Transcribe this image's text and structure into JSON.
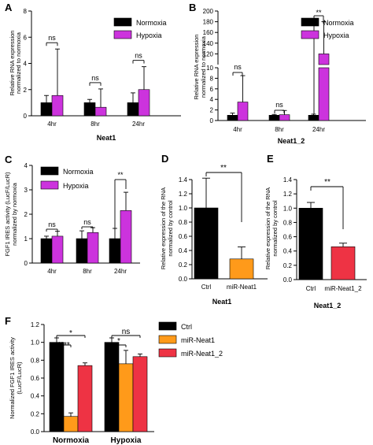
{
  "figure": {
    "panels": [
      "A",
      "B",
      "C",
      "D",
      "E",
      "F"
    ]
  },
  "colors": {
    "normoxia": "#000000",
    "hypoxia": "#cc33dd",
    "ctrl": "#000000",
    "neat1": "#ff9a1a",
    "neat1_2": "#ee3344"
  },
  "chart_data": [
    {
      "id": "A",
      "type": "bar",
      "categories": [
        "4hr",
        "8hr",
        "24hr"
      ],
      "series": [
        {
          "name": "Normoxia",
          "values": [
            1.0,
            1.0,
            1.0
          ],
          "err": [
            0.55,
            0.25,
            0.75
          ]
        },
        {
          "name": "Hypoxia",
          "values": [
            1.55,
            0.65,
            2.0
          ],
          "err": [
            3.55,
            1.4,
            1.75
          ]
        }
      ],
      "ylabel": "Relative RNA expression normalized to normoxia",
      "xlabel": "Neat1",
      "ylim": [
        0,
        8
      ],
      "yticks": [
        0,
        2,
        4,
        6,
        8
      ],
      "sig": [
        "ns",
        "ns",
        "ns"
      ],
      "legend": "top-right"
    },
    {
      "id": "B",
      "type": "bar",
      "broken_axis": true,
      "categories": [
        "4hr",
        "8hr",
        "24hr"
      ],
      "series": [
        {
          "name": "Normoxia",
          "values": [
            1.0,
            1.0,
            1.0
          ],
          "err": [
            0.4,
            0.15,
            0.2
          ]
        },
        {
          "name": "Hypoxia",
          "values": [
            3.5,
            1.1,
            120
          ],
          "err": [
            5.0,
            0.8,
            60
          ]
        }
      ],
      "ylabel": "Relative RNA expression normalized to normoxia",
      "xlabel": "Neat1_2",
      "ylim_lower": [
        0,
        10
      ],
      "ylim_upper": [
        100,
        200
      ],
      "yticks_lower": [
        0,
        2,
        4,
        6,
        8,
        10
      ],
      "yticks_upper": [
        120,
        140,
        160,
        180,
        200
      ],
      "sig": [
        "ns",
        "ns",
        "**"
      ],
      "legend": "top-right"
    },
    {
      "id": "C",
      "type": "bar",
      "categories": [
        "4hr",
        "8hr",
        "24hr"
      ],
      "series": [
        {
          "name": "Normoxia",
          "values": [
            1.0,
            1.0,
            1.0
          ],
          "err": [
            0.1,
            0.32,
            0.42
          ]
        },
        {
          "name": "Hypoxia",
          "values": [
            1.1,
            1.25,
            2.15
          ],
          "err": [
            0.2,
            0.2,
            0.75
          ]
        }
      ],
      "ylabel": "FGF1 IRES activity (LucF/LucR) normalized by normoxia",
      "xlabel": "",
      "ylim": [
        0,
        4
      ],
      "yticks": [
        0,
        1,
        2,
        3,
        4
      ],
      "sig": [
        "ns",
        "ns",
        "**"
      ],
      "legend": "top-left"
    },
    {
      "id": "D",
      "type": "bar",
      "categories": [
        "Ctrl",
        "miR-Neat1"
      ],
      "series": [
        {
          "name": "",
          "values": [
            1.0,
            0.28
          ],
          "err": [
            0.42,
            0.17
          ]
        }
      ],
      "ylabel": "Relative expression of the RNA normalized by control",
      "xlabel": "Neat1",
      "ylim": [
        0,
        1.4
      ],
      "yticks": [
        0.0,
        0.2,
        0.4,
        0.6,
        0.8,
        1.0,
        1.2,
        1.4
      ],
      "sig": [
        "**"
      ]
    },
    {
      "id": "E",
      "type": "bar",
      "categories": [
        "Ctrl",
        "miR-Neat1_2"
      ],
      "series": [
        {
          "name": "",
          "values": [
            1.0,
            0.46
          ],
          "err": [
            0.08,
            0.05
          ]
        }
      ],
      "ylabel": "Relative expression of the RNA normalized by control",
      "xlabel": "Neat1_2",
      "ylim": [
        0,
        1.4
      ],
      "yticks": [
        0.0,
        0.2,
        0.4,
        0.6,
        0.8,
        1.0,
        1.2,
        1.4
      ],
      "sig": [
        "**"
      ]
    },
    {
      "id": "F",
      "type": "bar",
      "categories": [
        "Normoxia",
        "Hypoxia"
      ],
      "series": [
        {
          "name": "Ctrl",
          "values": [
            1.0,
            1.0
          ],
          "err": [
            0.05,
            0.05
          ]
        },
        {
          "name": "miR-Neat1",
          "values": [
            0.17,
            0.76
          ],
          "err": [
            0.04,
            0.15
          ]
        },
        {
          "name": "miR-Neat1_2",
          "values": [
            0.74,
            0.84
          ],
          "err": [
            0.03,
            0.03
          ]
        }
      ],
      "ylabel": "Normalized FGF1 IRES activity (LucF/LucR)",
      "xlabel": "",
      "ylim": [
        0,
        1.2
      ],
      "yticks": [
        0.0,
        0.2,
        0.4,
        0.6,
        0.8,
        1.0,
        1.2
      ],
      "sig_normoxia": [
        "****",
        "*"
      ],
      "sig_hypoxia": [
        "*",
        "ns"
      ],
      "legend": "top-right"
    }
  ]
}
